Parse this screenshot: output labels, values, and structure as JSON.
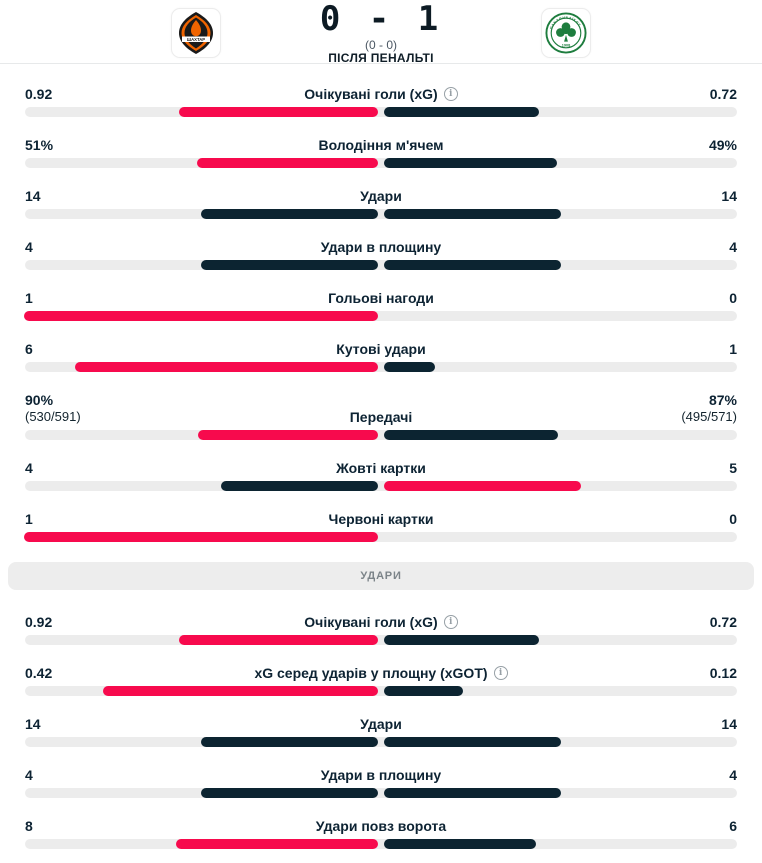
{
  "header": {
    "home_team_logo": "shakhtar-crest",
    "away_team_logo": "panathinaikos-crest",
    "away_crest_text": "ΠΑΝΑΘΗΝΑΪΚΟΣ",
    "away_crest_year": "1908",
    "score": "0 - 1",
    "halftime": "(0 - 0)",
    "note": "ПІСЛЯ ПЕНАЛЬТІ"
  },
  "colors": {
    "accent_red": "#f70a4d",
    "bar_navy": "#0c2431",
    "track_gray": "#ececec",
    "shakhtar_orange": "#f06400",
    "shakhtar_black": "#1a1a1a",
    "panathinaikos_green": "#1e7d3e"
  },
  "sections": [
    {
      "header": null,
      "rows": [
        {
          "label": "Очікувані голи (xG)",
          "info": true,
          "left": {
            "value": "0.92",
            "num": 0.92
          },
          "right": {
            "value": "0.72",
            "num": 0.72
          }
        },
        {
          "label": "Володіння м'ячем",
          "info": false,
          "left": {
            "value": "51%",
            "num": 51
          },
          "right": {
            "value": "49%",
            "num": 49
          }
        },
        {
          "label": "Удари",
          "info": false,
          "left": {
            "value": "14",
            "num": 14
          },
          "right": {
            "value": "14",
            "num": 14
          }
        },
        {
          "label": "Удари в площину",
          "info": false,
          "left": {
            "value": "4",
            "num": 4
          },
          "right": {
            "value": "4",
            "num": 4
          }
        },
        {
          "label": "Гольові нагоди",
          "info": false,
          "left": {
            "value": "1",
            "num": 1
          },
          "right": {
            "value": "0",
            "num": 0
          }
        },
        {
          "label": "Кутові удари",
          "info": false,
          "left": {
            "value": "6",
            "num": 6
          },
          "right": {
            "value": "1",
            "num": 1
          }
        },
        {
          "label": "Передачі",
          "info": false,
          "left": {
            "value": "90%",
            "sub": "(530/591)",
            "num": 90
          },
          "right": {
            "value": "87%",
            "sub": "(495/571)",
            "num": 87
          }
        },
        {
          "label": "Жовті картки",
          "info": false,
          "left": {
            "value": "4",
            "num": 4
          },
          "right": {
            "value": "5",
            "num": 5
          }
        },
        {
          "label": "Червоні картки",
          "info": false,
          "left": {
            "value": "1",
            "num": 1
          },
          "right": {
            "value": "0",
            "num": 0
          }
        }
      ]
    },
    {
      "header": "УДАРИ",
      "rows": [
        {
          "label": "Очікувані голи (xG)",
          "info": true,
          "left": {
            "value": "0.92",
            "num": 0.92
          },
          "right": {
            "value": "0.72",
            "num": 0.72
          }
        },
        {
          "label": "xG серед ударів у площну (xGOT)",
          "info": true,
          "left": {
            "value": "0.42",
            "num": 0.42
          },
          "right": {
            "value": "0.12",
            "num": 0.12
          }
        },
        {
          "label": "Удари",
          "info": false,
          "left": {
            "value": "14",
            "num": 14
          },
          "right": {
            "value": "14",
            "num": 14
          }
        },
        {
          "label": "Удари в площину",
          "info": false,
          "left": {
            "value": "4",
            "num": 4
          },
          "right": {
            "value": "4",
            "num": 4
          }
        },
        {
          "label": "Удари повз ворота",
          "info": false,
          "left": {
            "value": "8",
            "num": 8
          },
          "right": {
            "value": "6",
            "num": 6
          }
        }
      ]
    }
  ]
}
